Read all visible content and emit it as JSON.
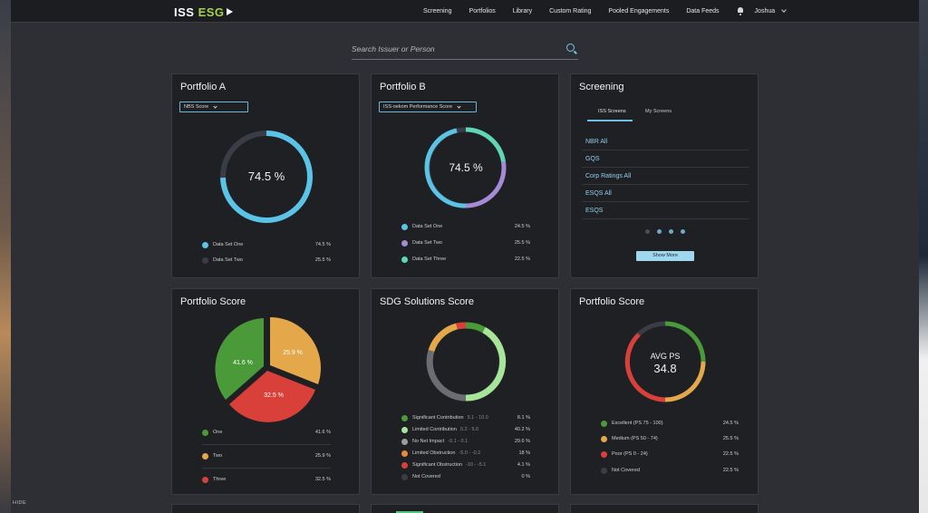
{
  "brand": {
    "name_part1": "ISS ",
    "name_part2": "ESG",
    "accent_color": "#a9d24a"
  },
  "nav": {
    "items": [
      "Screening",
      "Portfolios",
      "Library",
      "Custom Rating",
      "Pooled Engagements",
      "Data Feeds"
    ],
    "user": "Joshua"
  },
  "search": {
    "placeholder": "Search Issuer or Person"
  },
  "card_portfolio_a": {
    "title": "Portfolio A",
    "select": "NBS Score",
    "center_label": "74.5 %",
    "ring_fraction": 0.745,
    "legend": [
      {
        "label": "Data Set One",
        "value": "74.5 %",
        "color": "#5bc3e6"
      },
      {
        "label": "Data Set Two",
        "value": "25.5 %",
        "color": "#3a3d45"
      }
    ]
  },
  "card_portfolio_b": {
    "title": "Portfolio B",
    "select": "ISS-oekom Performance Score",
    "center_label": "74.5 %",
    "legend": [
      {
        "label": "Data Set One",
        "value": "24.5 %",
        "color": "#5bc3e6"
      },
      {
        "label": "Data Set Two",
        "value": "25.5 %",
        "color": "#a58bd6"
      },
      {
        "label": "Data Set Three",
        "value": "22.5 %",
        "color": "#5fd6b6"
      }
    ]
  },
  "card_screening": {
    "title": "Screening",
    "tabs": [
      "ISS Screens",
      "My Screens"
    ],
    "items": [
      "NBR All",
      "GQS",
      "Corp Ratings All",
      "ESQS All",
      "ESQS"
    ],
    "show_more": "Show More",
    "page": 1,
    "page_count": 4
  },
  "card_portfolio_score": {
    "title": "Portfolio Score",
    "legend": [
      {
        "label": "One",
        "value": "41.6 %",
        "color": "#4b9a3a"
      },
      {
        "label": "Two",
        "value": "25.9 %",
        "color": "#e4a84a"
      },
      {
        "label": "Three",
        "value": "32.5 %",
        "color": "#d9403a"
      }
    ],
    "slice_labels": [
      "41.6 %",
      "25.9 %",
      "32.5 %"
    ]
  },
  "card_sdg": {
    "title": "SDG Solutions Score",
    "legend": [
      {
        "label": "Significant Contribution",
        "range": "5.1 - 10.0",
        "value": "8.1 %",
        "color": "#4b9a3a"
      },
      {
        "label": "Limited Contribution",
        "range": "0.2 - 5.0",
        "value": "40.2 %",
        "color": "#a6e59a"
      },
      {
        "label": "No Net Impact",
        "range": "-0.1 - 0.1",
        "value": "29.6 %",
        "color": "#9a9ca2"
      },
      {
        "label": "Limited Obstruction",
        "range": "-5.0 - -0.2",
        "value": "18 %",
        "color": "#e88a3a"
      },
      {
        "label": "Significant Obstruction",
        "range": "-10 - -5.1",
        "value": "4.1 %",
        "color": "#d9403a"
      },
      {
        "label": "Not Covered",
        "range": "",
        "value": "0 %",
        "color": "#3a3d45"
      }
    ]
  },
  "card_ps": {
    "title": "Portfolio Score",
    "center_title": "AVG PS",
    "center_value": "34.8",
    "legend": [
      {
        "label": "Excellent (PS 75 - 100)",
        "value": "24.5 %",
        "color": "#4b9a3a"
      },
      {
        "label": "Medium (PS 50 - 74)",
        "value": "25.5 %",
        "color": "#e4a84a"
      },
      {
        "label": "Poor (PS 0 - 24)",
        "value": "22.5 %",
        "color": "#d9403a"
      },
      {
        "label": "Not Covered",
        "value": "22.5 %",
        "color": "#3a3d45"
      }
    ]
  },
  "sidebar": {
    "hide_label": "HIDE"
  }
}
